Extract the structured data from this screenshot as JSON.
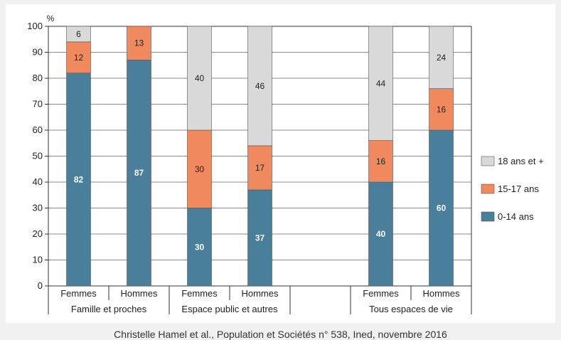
{
  "chart_data": {
    "type": "bar",
    "stacked": true,
    "yunit": "%",
    "ylim": [
      0,
      100
    ],
    "yticks": [
      0,
      10,
      20,
      30,
      40,
      50,
      60,
      70,
      80,
      90,
      100
    ],
    "grid": true,
    "legend_position": "right",
    "categories": [
      "Femmes",
      "Hommes",
      "Femmes",
      "Hommes",
      "Femmes",
      "Hommes"
    ],
    "groups": [
      {
        "label": "Famille et proches",
        "categories": [
          0,
          1
        ]
      },
      {
        "label": "Espace public et autres",
        "categories": [
          2,
          3
        ]
      },
      {
        "label": "Tous espaces de vie",
        "categories": [
          4,
          5
        ]
      }
    ],
    "series": [
      {
        "name": "0-14 ans",
        "color": "#4a7f9c",
        "label_color": "#ffffff",
        "values": [
          82,
          87,
          30,
          37,
          40,
          60
        ]
      },
      {
        "name": "15-17 ans",
        "color": "#f08a5e",
        "label_color": "#222222",
        "values": [
          12,
          13,
          30,
          17,
          16,
          16
        ]
      },
      {
        "name": "18 ans et +",
        "color": "#d9d9d9",
        "label_color": "#222222",
        "values": [
          6,
          0,
          40,
          46,
          44,
          24
        ]
      }
    ],
    "legend_order": [
      2,
      1,
      0
    ]
  },
  "source_text": "Christelle Hamel et al., Population et Sociétés n° 538, Ined, novembre 2016"
}
